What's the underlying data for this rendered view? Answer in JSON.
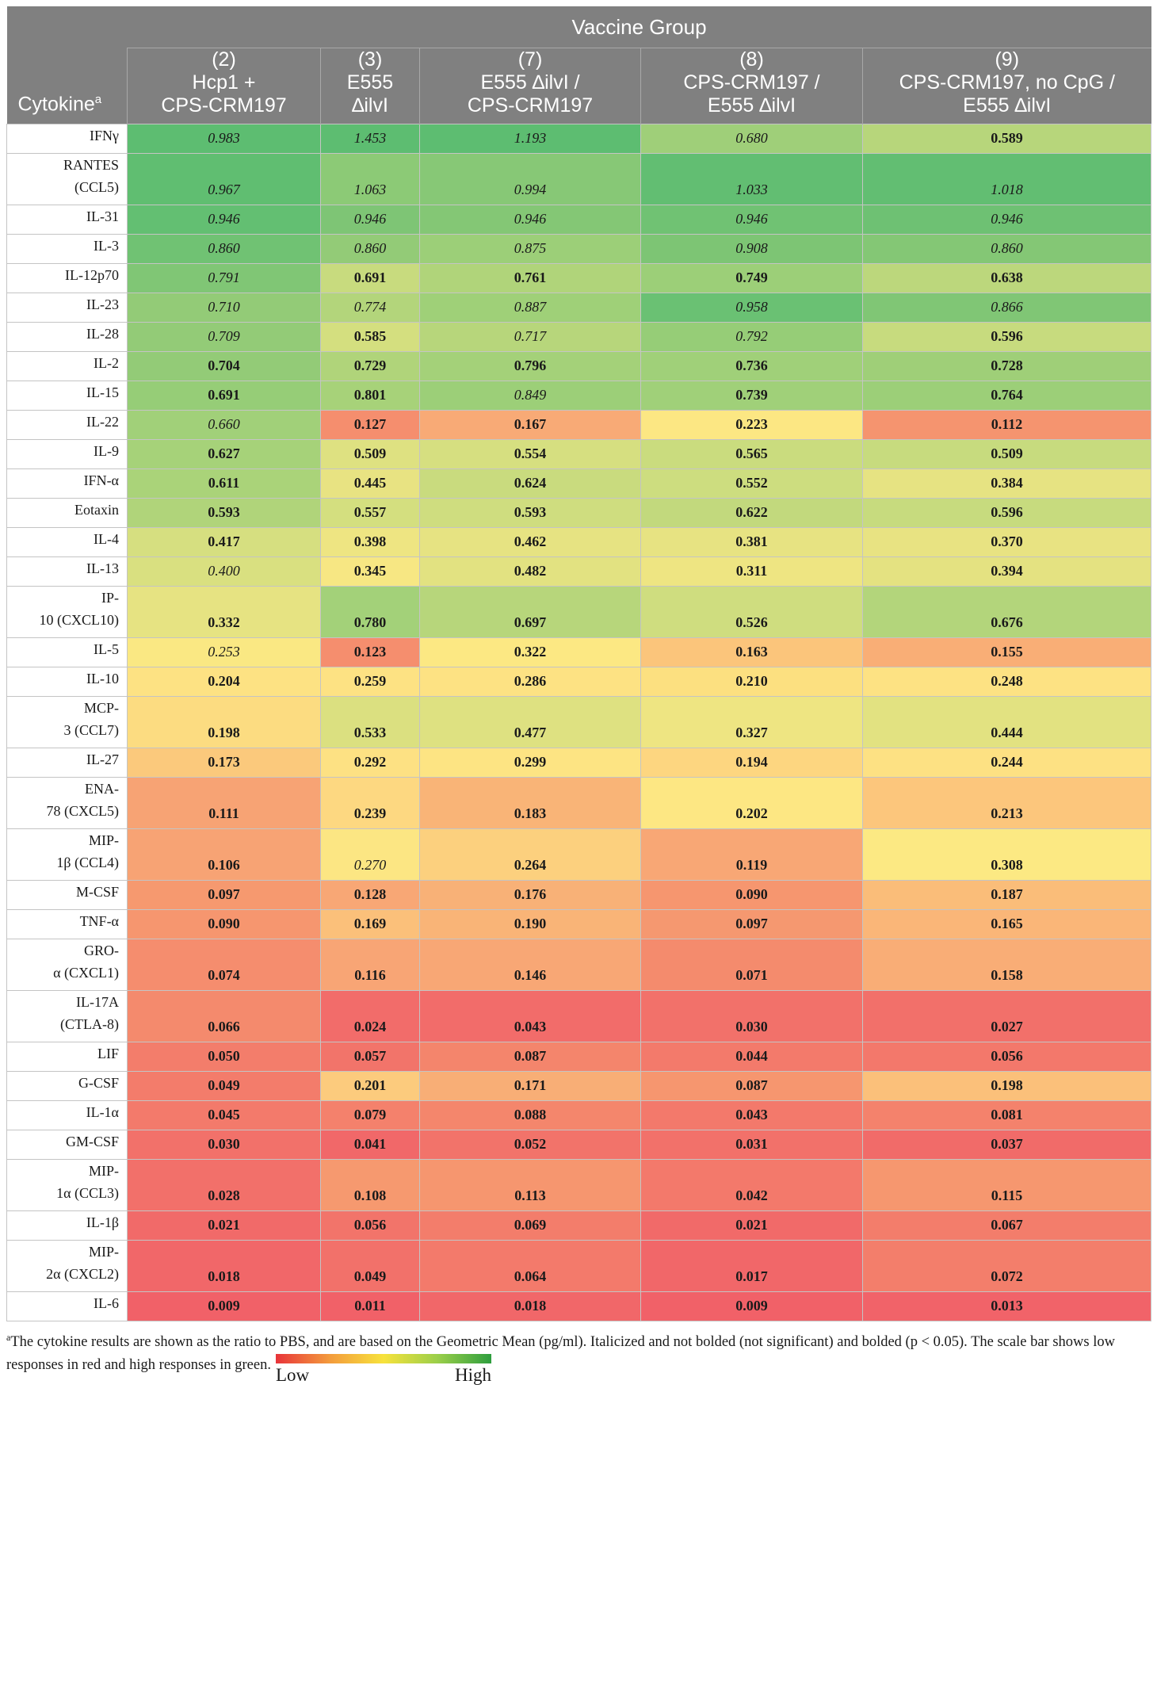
{
  "header": {
    "group_label": "Vaccine Group",
    "cytokine_label": "Cytokine",
    "cytokine_sup": "a",
    "columns": [
      {
        "line1": "(2)",
        "line2": "Hcp1 +",
        "line3": "CPS-CRM197"
      },
      {
        "line1": "(3)",
        "line2": "E555",
        "line3": "∆ilvI"
      },
      {
        "line1": "(7)",
        "line2": "E555 ∆ilvI /",
        "line3": "CPS-CRM197"
      },
      {
        "line1": "(8)",
        "line2": "CPS-CRM197 /",
        "line3": "E555 ∆ilvI"
      },
      {
        "line1": "(9)",
        "line2": "CPS-CRM197, no CpG /",
        "line3": "E555 ∆ilvI"
      }
    ]
  },
  "rows": [
    {
      "name": "IFNγ",
      "cells": [
        {
          "v": "0.983",
          "b": false,
          "c": "#5dbd71"
        },
        {
          "v": "1.453",
          "b": false,
          "c": "#5dbd71"
        },
        {
          "v": "1.193",
          "b": false,
          "c": "#5dbd71"
        },
        {
          "v": "0.680",
          "b": false,
          "c": "#9fcf79"
        },
        {
          "v": "0.589",
          "b": true,
          "c": "#b7d67b"
        }
      ]
    },
    {
      "name": "RANTES (CCL5)",
      "cells": [
        {
          "v": "0.967",
          "b": false,
          "c": "#60be71"
        },
        {
          "v": "1.063",
          "b": false,
          "c": "#8cca76"
        },
        {
          "v": "0.994",
          "b": false,
          "c": "#87c876"
        },
        {
          "v": "1.033",
          "b": false,
          "c": "#62be72"
        },
        {
          "v": "1.018",
          "b": false,
          "c": "#62be72"
        }
      ]
    },
    {
      "name": "IL-31",
      "cells": [
        {
          "v": "0.946",
          "b": false,
          "c": "#63bf72"
        },
        {
          "v": "0.946",
          "b": false,
          "c": "#7ec575"
        },
        {
          "v": "0.946",
          "b": false,
          "c": "#84c775"
        },
        {
          "v": "0.946",
          "b": false,
          "c": "#70c273"
        },
        {
          "v": "0.946",
          "b": false,
          "c": "#6ec173"
        }
      ]
    },
    {
      "name": "IL-3",
      "cells": [
        {
          "v": "0.860",
          "b": false,
          "c": "#70c273"
        },
        {
          "v": "0.860",
          "b": false,
          "c": "#93cb77"
        },
        {
          "v": "0.875",
          "b": false,
          "c": "#9ccf78"
        },
        {
          "v": "0.908",
          "b": false,
          "c": "#7dc574"
        },
        {
          "v": "0.860",
          "b": false,
          "c": "#84c775"
        }
      ]
    },
    {
      "name": "IL-12p70",
      "cells": [
        {
          "v": "0.791",
          "b": false,
          "c": "#80c675"
        },
        {
          "v": "0.691",
          "b": true,
          "c": "#c8db7e"
        },
        {
          "v": "0.761",
          "b": true,
          "c": "#b0d47a"
        },
        {
          "v": "0.749",
          "b": true,
          "c": "#9ccf78"
        },
        {
          "v": "0.638",
          "b": true,
          "c": "#bcd77c"
        }
      ]
    },
    {
      "name": "IL-23",
      "cells": [
        {
          "v": "0.710",
          "b": false,
          "c": "#93cb77"
        },
        {
          "v": "0.774",
          "b": false,
          "c": "#b3d57b"
        },
        {
          "v": "0.887",
          "b": false,
          "c": "#9fd078"
        },
        {
          "v": "0.958",
          "b": false,
          "c": "#6ac173"
        },
        {
          "v": "0.866",
          "b": false,
          "c": "#80c675"
        }
      ]
    },
    {
      "name": "IL-28",
      "cells": [
        {
          "v": "0.709",
          "b": false,
          "c": "#93cb77"
        },
        {
          "v": "0.585",
          "b": true,
          "c": "#d4df7f"
        },
        {
          "v": "0.717",
          "b": false,
          "c": "#b7d67b"
        },
        {
          "v": "0.792",
          "b": false,
          "c": "#96cd77"
        },
        {
          "v": "0.596",
          "b": true,
          "c": "#c7db7e"
        }
      ]
    },
    {
      "name": "IL-2",
      "cells": [
        {
          "v": "0.704",
          "b": true,
          "c": "#93cb77"
        },
        {
          "v": "0.729",
          "b": true,
          "c": "#b0d47a"
        },
        {
          "v": "0.796",
          "b": true,
          "c": "#a4d179"
        },
        {
          "v": "0.736",
          "b": true,
          "c": "#a0d079"
        },
        {
          "v": "0.728",
          "b": true,
          "c": "#9fcf78"
        }
      ]
    },
    {
      "name": "IL-15",
      "cells": [
        {
          "v": "0.691",
          "b": true,
          "c": "#96cd77"
        },
        {
          "v": "0.801",
          "b": true,
          "c": "#a7d279"
        },
        {
          "v": "0.849",
          "b": false,
          "c": "#9ccf78"
        },
        {
          "v": "0.739",
          "b": true,
          "c": "#a0d079"
        },
        {
          "v": "0.764",
          "b": true,
          "c": "#9ccf78"
        }
      ]
    },
    {
      "name": "IL-22",
      "cells": [
        {
          "v": "0.660",
          "b": false,
          "c": "#a1d079"
        },
        {
          "v": "0.127",
          "b": true,
          "c": "#f58e6e"
        },
        {
          "v": "0.167",
          "b": true,
          "c": "#f8aa76"
        },
        {
          "v": "0.223",
          "b": true,
          "c": "#fce783"
        },
        {
          "v": "0.112",
          "b": true,
          "c": "#f5946f"
        }
      ]
    },
    {
      "name": "IL-9",
      "cells": [
        {
          "v": "0.627",
          "b": true,
          "c": "#a6d279"
        },
        {
          "v": "0.509",
          "b": true,
          "c": "#dee181"
        },
        {
          "v": "0.554",
          "b": true,
          "c": "#d6df80"
        },
        {
          "v": "0.565",
          "b": true,
          "c": "#cadc7e"
        },
        {
          "v": "0.509",
          "b": true,
          "c": "#c7db7e"
        }
      ]
    },
    {
      "name": "IFN-α",
      "cells": [
        {
          "v": "0.611",
          "b": true,
          "c": "#aad379"
        },
        {
          "v": "0.445",
          "b": true,
          "c": "#e8e382"
        },
        {
          "v": "0.624",
          "b": true,
          "c": "#c9db7e"
        },
        {
          "v": "0.552",
          "b": true,
          "c": "#cddd7f"
        },
        {
          "v": "0.384",
          "b": true,
          "c": "#e6e382"
        }
      ]
    },
    {
      "name": "Eotaxin",
      "cells": [
        {
          "v": "0.593",
          "b": true,
          "c": "#b0d47a"
        },
        {
          "v": "0.557",
          "b": true,
          "c": "#d4df7f"
        },
        {
          "v": "0.593",
          "b": true,
          "c": "#cfdd7f"
        },
        {
          "v": "0.622",
          "b": true,
          "c": "#c2d97d"
        },
        {
          "v": "0.596",
          "b": true,
          "c": "#c7db7e"
        }
      ]
    },
    {
      "name": "IL-4",
      "cells": [
        {
          "v": "0.417",
          "b": true,
          "c": "#d6df80"
        },
        {
          "v": "0.398",
          "b": true,
          "c": "#eee582"
        },
        {
          "v": "0.462",
          "b": true,
          "c": "#e6e382"
        },
        {
          "v": "0.381",
          "b": true,
          "c": "#e7e382"
        },
        {
          "v": "0.370",
          "b": true,
          "c": "#e8e382"
        }
      ]
    },
    {
      "name": "IL-13",
      "cells": [
        {
          "v": "0.400",
          "b": false,
          "c": "#d9e080"
        },
        {
          "v": "0.345",
          "b": true,
          "c": "#f7e783"
        },
        {
          "v": "0.482",
          "b": true,
          "c": "#e2e281"
        },
        {
          "v": "0.311",
          "b": true,
          "c": "#eee582"
        },
        {
          "v": "0.394",
          "b": true,
          "c": "#e4e281"
        }
      ]
    },
    {
      "name": "IP-10 (CXCL10)",
      "cells": [
        {
          "v": "0.332",
          "b": true,
          "c": "#e6e382"
        },
        {
          "v": "0.780",
          "b": true,
          "c": "#a3d179"
        },
        {
          "v": "0.697",
          "b": true,
          "c": "#b7d67b"
        },
        {
          "v": "0.526",
          "b": true,
          "c": "#cfdd7f"
        },
        {
          "v": "0.676",
          "b": true,
          "c": "#b3d57b"
        }
      ]
    },
    {
      "name": "IL-5",
      "cells": [
        {
          "v": "0.253",
          "b": false,
          "c": "#fae883"
        },
        {
          "v": "0.123",
          "b": true,
          "c": "#f58e6e"
        },
        {
          "v": "0.322",
          "b": true,
          "c": "#fce883"
        },
        {
          "v": "0.163",
          "b": true,
          "c": "#fbc57b"
        },
        {
          "v": "0.155",
          "b": true,
          "c": "#f9ae76"
        }
      ]
    },
    {
      "name": "IL-10",
      "cells": [
        {
          "v": "0.204",
          "b": true,
          "c": "#fde283"
        },
        {
          "v": "0.259",
          "b": true,
          "c": "#fde283"
        },
        {
          "v": "0.286",
          "b": true,
          "c": "#fde283"
        },
        {
          "v": "0.210",
          "b": true,
          "c": "#fce080"
        },
        {
          "v": "0.248",
          "b": true,
          "c": "#fde283"
        }
      ]
    },
    {
      "name": "MCP-3 (CCL7)",
      "cells": [
        {
          "v": "0.198",
          "b": true,
          "c": "#fcdc81"
        },
        {
          "v": "0.533",
          "b": true,
          "c": "#dbe080"
        },
        {
          "v": "0.477",
          "b": true,
          "c": "#dee181"
        },
        {
          "v": "0.327",
          "b": true,
          "c": "#eee582"
        },
        {
          "v": "0.444",
          "b": true,
          "c": "#e2e281"
        }
      ]
    },
    {
      "name": "IL-27",
      "cells": [
        {
          "v": "0.173",
          "b": true,
          "c": "#fbc97c"
        },
        {
          "v": "0.292",
          "b": true,
          "c": "#fde183"
        },
        {
          "v": "0.299",
          "b": true,
          "c": "#fde483"
        },
        {
          "v": "0.194",
          "b": true,
          "c": "#fdd680"
        },
        {
          "v": "0.244",
          "b": true,
          "c": "#fde183"
        }
      ]
    },
    {
      "name": "ENA-78 (CXCL5)",
      "cells": [
        {
          "v": "0.111",
          "b": true,
          "c": "#f7a374"
        },
        {
          "v": "0.239",
          "b": true,
          "c": "#fdd881"
        },
        {
          "v": "0.183",
          "b": true,
          "c": "#f9b477"
        },
        {
          "v": "0.202",
          "b": true,
          "c": "#fde783"
        },
        {
          "v": "0.213",
          "b": true,
          "c": "#fcc67c"
        }
      ]
    },
    {
      "name": "MIP-1β (CCL4)",
      "cells": [
        {
          "v": "0.106",
          "b": true,
          "c": "#f7a374"
        },
        {
          "v": "0.270",
          "b": false,
          "c": "#fce683"
        },
        {
          "v": "0.264",
          "b": true,
          "c": "#fcd07e"
        },
        {
          "v": "0.119",
          "b": true,
          "c": "#f8a775"
        },
        {
          "v": "0.308",
          "b": true,
          "c": "#fce983"
        }
      ]
    },
    {
      "name": "M-CSF",
      "cells": [
        {
          "v": "0.097",
          "b": true,
          "c": "#f6996f"
        },
        {
          "v": "0.128",
          "b": true,
          "c": "#f8a775"
        },
        {
          "v": "0.176",
          "b": true,
          "c": "#f8b177"
        },
        {
          "v": "0.090",
          "b": true,
          "c": "#f6966f"
        },
        {
          "v": "0.187",
          "b": true,
          "c": "#fabd79"
        }
      ]
    },
    {
      "name": "TNF-α",
      "cells": [
        {
          "v": "0.090",
          "b": true,
          "c": "#f6966f"
        },
        {
          "v": "0.169",
          "b": true,
          "c": "#fbc07a"
        },
        {
          "v": "0.190",
          "b": true,
          "c": "#f9b477"
        },
        {
          "v": "0.097",
          "b": true,
          "c": "#f59870"
        },
        {
          "v": "0.165",
          "b": true,
          "c": "#fab678"
        }
      ]
    },
    {
      "name": "GRO-α (CXCL1)",
      "cells": [
        {
          "v": "0.074",
          "b": true,
          "c": "#f58d6e"
        },
        {
          "v": "0.116",
          "b": true,
          "c": "#f8a575"
        },
        {
          "v": "0.146",
          "b": true,
          "c": "#f8a775"
        },
        {
          "v": "0.071",
          "b": true,
          "c": "#f48b6d"
        },
        {
          "v": "0.158",
          "b": true,
          "c": "#f9ad76"
        }
      ]
    },
    {
      "name": "IL-17A (CTLA-8)",
      "cells": [
        {
          "v": "0.066",
          "b": true,
          "c": "#f48a6d"
        },
        {
          "v": "0.024",
          "b": true,
          "c": "#f26c6a"
        },
        {
          "v": "0.043",
          "b": true,
          "c": "#f26c6a"
        },
        {
          "v": "0.030",
          "b": true,
          "c": "#f2716a"
        },
        {
          "v": "0.027",
          "b": true,
          "c": "#f2706a"
        }
      ]
    },
    {
      "name": "LIF",
      "cells": [
        {
          "v": "0.050",
          "b": true,
          "c": "#f37d6b"
        },
        {
          "v": "0.057",
          "b": true,
          "c": "#f2746a"
        },
        {
          "v": "0.087",
          "b": true,
          "c": "#f4856c"
        },
        {
          "v": "0.044",
          "b": true,
          "c": "#f37a6b"
        },
        {
          "v": "0.056",
          "b": true,
          "c": "#f3786b"
        }
      ]
    },
    {
      "name": "G-CSF",
      "cells": [
        {
          "v": "0.049",
          "b": true,
          "c": "#f37c6b"
        },
        {
          "v": "0.201",
          "b": true,
          "c": "#fccb7d"
        },
        {
          "v": "0.171",
          "b": true,
          "c": "#f8ae76"
        },
        {
          "v": "0.087",
          "b": true,
          "c": "#f6966f"
        },
        {
          "v": "0.198",
          "b": true,
          "c": "#fbc07a"
        }
      ]
    },
    {
      "name": "IL-1α",
      "cells": [
        {
          "v": "0.045",
          "b": true,
          "c": "#f37a6b"
        },
        {
          "v": "0.079",
          "b": true,
          "c": "#f4816c"
        },
        {
          "v": "0.088",
          "b": true,
          "c": "#f4866c"
        },
        {
          "v": "0.043",
          "b": true,
          "c": "#f3796b"
        },
        {
          "v": "0.081",
          "b": true,
          "c": "#f4826c"
        }
      ]
    },
    {
      "name": "GM-CSF",
      "cells": [
        {
          "v": "0.030",
          "b": true,
          "c": "#f2716a"
        },
        {
          "v": "0.041",
          "b": true,
          "c": "#f16869"
        },
        {
          "v": "0.052",
          "b": true,
          "c": "#f2736a"
        },
        {
          "v": "0.031",
          "b": true,
          "c": "#f2716a"
        },
        {
          "v": "0.037",
          "b": true,
          "c": "#f16b69"
        }
      ]
    },
    {
      "name": "MIP-1α (CCL3)",
      "cells": [
        {
          "v": "0.028",
          "b": true,
          "c": "#f2706a"
        },
        {
          "v": "0.108",
          "b": true,
          "c": "#f6996f"
        },
        {
          "v": "0.113",
          "b": true,
          "c": "#f6966f"
        },
        {
          "v": "0.042",
          "b": true,
          "c": "#f3796b"
        },
        {
          "v": "0.115",
          "b": true,
          "c": "#f6976f"
        }
      ]
    },
    {
      "name": "IL-1β",
      "cells": [
        {
          "v": "0.021",
          "b": true,
          "c": "#f16a69"
        },
        {
          "v": "0.056",
          "b": true,
          "c": "#f2746a"
        },
        {
          "v": "0.069",
          "b": true,
          "c": "#f37d6b"
        },
        {
          "v": "0.021",
          "b": true,
          "c": "#f16a69"
        },
        {
          "v": "0.067",
          "b": true,
          "c": "#f37d6b"
        }
      ]
    },
    {
      "name": "MIP-2α (CXCL2)",
      "cells": [
        {
          "v": "0.018",
          "b": true,
          "c": "#f16769"
        },
        {
          "v": "0.049",
          "b": true,
          "c": "#f2716a"
        },
        {
          "v": "0.064",
          "b": true,
          "c": "#f37a6b"
        },
        {
          "v": "0.017",
          "b": true,
          "c": "#f16769"
        },
        {
          "v": "0.072",
          "b": true,
          "c": "#f37e6b"
        }
      ]
    },
    {
      "name": "IL-6",
      "cells": [
        {
          "v": "0.009",
          "b": true,
          "c": "#f16168"
        },
        {
          "v": "0.011",
          "b": true,
          "c": "#f16168"
        },
        {
          "v": "0.018",
          "b": true,
          "c": "#f16769"
        },
        {
          "v": "0.009",
          "b": true,
          "c": "#f16168"
        },
        {
          "v": "0.013",
          "b": true,
          "c": "#f16369"
        }
      ]
    }
  ],
  "footnote": {
    "sup": "a",
    "text": "The cytokine results are shown as the ratio to PBS, and are based on the Geometric Mean (pg/ml). Italicized and not bolded (not significant) and bolded (p < 0.05). The scale bar shows low responses in red and high responses in green.",
    "scale_low": "Low",
    "scale_high": "High"
  }
}
